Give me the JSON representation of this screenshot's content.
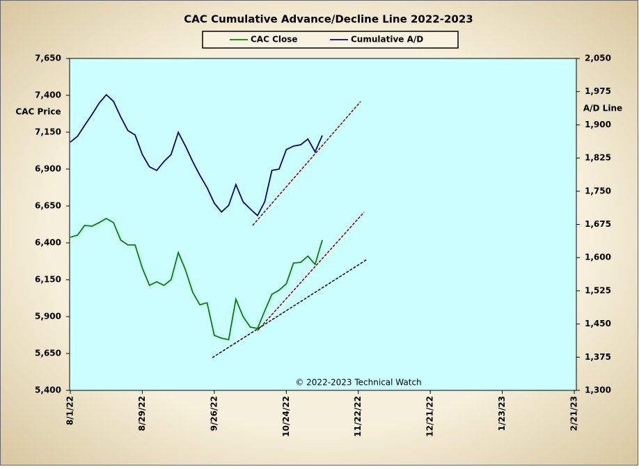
{
  "chart_data": {
    "type": "line",
    "title": "CAC Cumulative  Advance/Decline Line 2022-2023",
    "ylabel": "CAC Price",
    "y2label": "A/D Line",
    "annotation": "© 2022-2023  Technical  Watch",
    "categories": [
      "8/1/22",
      null,
      null,
      null,
      null,
      null,
      null,
      null,
      null,
      null,
      "8/29/22",
      null,
      null,
      null,
      null,
      null,
      null,
      null,
      null,
      null,
      "9/26/22",
      null,
      null,
      null,
      null,
      null,
      null,
      null,
      null,
      null,
      "10/24/22",
      null,
      null,
      null,
      null,
      null,
      null,
      null,
      null,
      null,
      "11/22/22",
      null,
      null,
      null,
      null,
      null,
      null,
      null,
      null,
      null,
      "12/21/22",
      null,
      null,
      null,
      null,
      null,
      null,
      null,
      null,
      null,
      "1/23/23",
      null,
      null,
      null,
      null,
      null,
      null,
      null,
      null,
      null,
      "2/21/23"
    ],
    "series": [
      {
        "name": "CAC Close",
        "color": "#008000",
        "values": [
          6438,
          6452,
          6518,
          6513,
          6537,
          6565,
          6537,
          6419,
          6386,
          6386,
          6230,
          6112,
          6136,
          6112,
          6150,
          6334,
          6216,
          6065,
          5980,
          5994,
          5773,
          5754,
          5744,
          6018,
          5900,
          5829,
          5820,
          5938,
          6051,
          6079,
          6122,
          6263,
          6268,
          6310,
          6254,
          6419,
          null,
          null,
          null,
          null,
          null,
          null,
          null,
          null,
          null,
          null,
          null,
          null,
          null,
          null,
          null,
          null,
          null,
          null,
          null,
          null,
          null,
          null,
          null,
          null,
          null,
          null,
          null,
          null,
          null,
          null,
          null,
          null,
          null,
          null,
          null
        ]
      },
      {
        "name": "Cumulative A/D",
        "color": "#000080",
        "axis": "y2",
        "values": [
          1861,
          1874,
          1899,
          1923,
          1949,
          1968,
          1953,
          1918,
          1887,
          1877,
          1833,
          1805,
          1797,
          1817,
          1833,
          1883,
          1852,
          1817,
          1786,
          1758,
          1723,
          1703,
          1718,
          1765,
          1726,
          1710,
          1695,
          1726,
          1797,
          1800,
          1844,
          1852,
          1855,
          1868,
          1839,
          1876,
          null,
          null,
          null,
          null,
          null,
          null,
          null,
          null,
          null,
          null,
          null,
          null,
          null,
          null,
          null,
          null,
          null,
          null,
          null,
          null,
          null,
          null,
          null,
          null,
          null,
          null,
          null,
          null,
          null,
          null,
          null,
          null,
          null,
          null,
          null
        ]
      }
    ],
    "ylim": [
      5400,
      7650
    ],
    "yticks": [
      {
        "value": 5400,
        "label": "5,400"
      },
      {
        "value": 5650,
        "label": "5,650"
      },
      {
        "value": 5900,
        "label": "5,900"
      },
      {
        "value": 6150,
        "label": "6,150"
      },
      {
        "value": 6400,
        "label": "6,400"
      },
      {
        "value": 6650,
        "label": "6,650"
      },
      {
        "value": 6900,
        "label": "6,900"
      },
      {
        "value": 7150,
        "label": "7,150"
      },
      {
        "value": 7400,
        "label": "7,400"
      },
      {
        "value": 7650,
        "label": "7,650"
      }
    ],
    "y2lim": [
      1300,
      2050
    ],
    "y2ticks": [
      {
        "value": 1300,
        "label": "1,300"
      },
      {
        "value": 1375,
        "label": "1,375"
      },
      {
        "value": 1450,
        "label": "1,450"
      },
      {
        "value": 1525,
        "label": "1,525"
      },
      {
        "value": 1600,
        "label": "1,600"
      },
      {
        "value": 1675,
        "label": "1,675"
      },
      {
        "value": 1750,
        "label": "1,750"
      },
      {
        "value": 1825,
        "label": "1,825"
      },
      {
        "value": 1900,
        "label": "1,900"
      },
      {
        "value": 1975,
        "label": "1,975"
      },
      {
        "value": 2050,
        "label": "2,050"
      }
    ],
    "grid": false,
    "legend": "top"
  }
}
